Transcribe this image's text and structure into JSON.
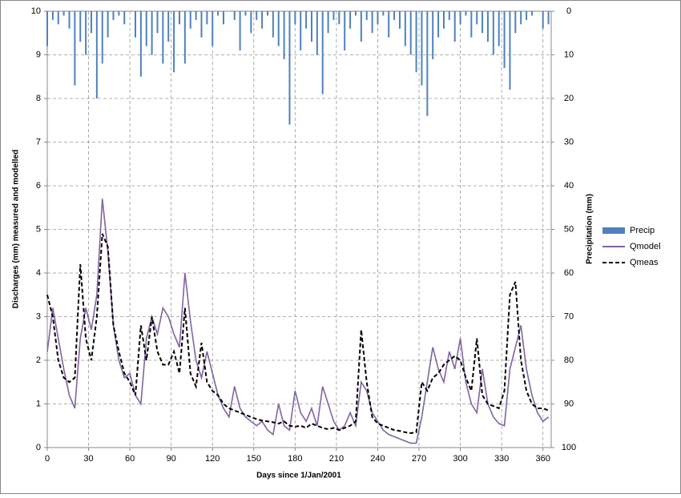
{
  "chart_data": {
    "type": "line",
    "xlabel": "Days since 1/Jan/2001",
    "ylabel": "Discharges (mm) measured and modelled",
    "y2label": "Precipitation (mm)",
    "x": [
      0,
      4,
      8,
      12,
      16,
      20,
      24,
      28,
      32,
      36,
      40,
      44,
      48,
      52,
      56,
      60,
      64,
      68,
      72,
      76,
      80,
      84,
      88,
      92,
      96,
      100,
      104,
      108,
      112,
      116,
      120,
      124,
      128,
      132,
      136,
      140,
      144,
      148,
      152,
      156,
      160,
      164,
      168,
      172,
      176,
      180,
      184,
      188,
      192,
      196,
      200,
      204,
      208,
      212,
      216,
      220,
      224,
      228,
      232,
      236,
      240,
      244,
      248,
      252,
      256,
      260,
      264,
      268,
      272,
      276,
      280,
      284,
      288,
      292,
      296,
      300,
      304,
      308,
      312,
      316,
      320,
      324,
      328,
      332,
      336,
      340,
      344,
      348,
      352,
      356,
      360,
      364
    ],
    "series": [
      {
        "name": "Precip",
        "type": "bar",
        "axis": "y2",
        "color": "#4f81bd",
        "values": [
          8,
          2,
          3,
          1,
          4,
          17,
          7,
          10,
          5,
          20,
          12,
          6,
          2,
          1,
          3,
          0,
          6,
          15,
          8,
          10,
          5,
          12,
          7,
          14,
          3,
          12,
          4,
          2,
          6,
          3,
          8,
          1,
          3,
          0,
          2,
          9,
          1,
          5,
          2,
          4,
          1,
          6,
          8,
          11,
          26,
          3,
          9,
          4,
          7,
          10,
          19,
          5,
          2,
          3,
          9,
          4,
          1,
          7,
          2,
          5,
          3,
          1,
          6,
          2,
          4,
          8,
          10,
          14,
          17,
          24,
          11,
          6,
          4,
          2,
          7,
          3,
          1,
          6,
          3,
          5,
          7,
          10,
          8,
          13,
          18,
          5,
          3,
          2,
          1,
          0,
          4,
          3
        ]
      },
      {
        "name": "Qmodel",
        "type": "line",
        "color": "#8064a2",
        "dash": false,
        "values": [
          2.2,
          3.2,
          2.5,
          1.8,
          1.2,
          0.9,
          2.5,
          3.2,
          2.7,
          3.5,
          5.7,
          4.5,
          2.8,
          2.0,
          1.6,
          1.7,
          1.2,
          1.0,
          2.5,
          3.0,
          2.6,
          3.2,
          3.0,
          2.6,
          2.3,
          4.0,
          2.9,
          2.0,
          1.6,
          2.2,
          1.7,
          1.2,
          0.9,
          0.7,
          1.4,
          0.9,
          0.7,
          0.6,
          0.5,
          0.6,
          0.4,
          0.3,
          1.0,
          0.5,
          0.4,
          1.3,
          0.8,
          0.6,
          0.9,
          0.5,
          1.4,
          1.0,
          0.6,
          0.4,
          0.5,
          0.8,
          0.5,
          1.5,
          1.3,
          0.8,
          0.6,
          0.4,
          0.3,
          0.25,
          0.2,
          0.15,
          0.1,
          0.1,
          0.7,
          1.5,
          2.3,
          1.8,
          1.5,
          2.2,
          1.8,
          2.5,
          1.5,
          1.0,
          0.8,
          1.8,
          1.0,
          0.7,
          0.55,
          0.5,
          1.8,
          2.3,
          2.8,
          1.8,
          1.2,
          0.8,
          0.6,
          0.7
        ]
      },
      {
        "name": "Qmeas",
        "type": "line",
        "color": "#000000",
        "dash": true,
        "values": [
          3.5,
          3.0,
          2.0,
          1.6,
          1.5,
          1.6,
          4.2,
          2.5,
          2.0,
          3.0,
          4.9,
          4.6,
          2.8,
          2.2,
          1.7,
          1.5,
          1.2,
          2.8,
          2.0,
          3.0,
          2.2,
          1.9,
          1.9,
          2.2,
          1.7,
          3.2,
          1.7,
          1.4,
          2.4,
          1.5,
          1.3,
          1.2,
          1.0,
          0.9,
          0.85,
          0.8,
          0.75,
          0.7,
          0.65,
          0.62,
          0.6,
          0.58,
          0.55,
          0.6,
          0.5,
          0.48,
          0.5,
          0.45,
          0.55,
          0.5,
          0.45,
          0.42,
          0.45,
          0.4,
          0.45,
          0.5,
          0.6,
          2.7,
          1.5,
          0.7,
          0.55,
          0.5,
          0.45,
          0.4,
          0.38,
          0.35,
          0.33,
          0.35,
          1.5,
          1.3,
          1.6,
          1.7,
          1.9,
          2.0,
          2.1,
          2.0,
          1.6,
          1.3,
          2.5,
          1.2,
          1.0,
          0.95,
          0.9,
          1.3,
          3.5,
          3.8,
          2.0,
          1.3,
          1.0,
          0.9,
          0.9,
          0.85
        ]
      }
    ],
    "xlim": [
      0,
      366
    ],
    "xticks": [
      0,
      30,
      60,
      90,
      120,
      150,
      180,
      210,
      240,
      270,
      300,
      330,
      360
    ],
    "ylim": [
      0,
      10
    ],
    "yticks": [
      0,
      1,
      2,
      3,
      4,
      5,
      6,
      7,
      8,
      9,
      10
    ],
    "y2lim": [
      100,
      0
    ],
    "y2ticks": [
      0,
      10,
      20,
      30,
      40,
      50,
      60,
      70,
      80,
      90,
      100
    ],
    "grid": true,
    "legend": "right"
  }
}
